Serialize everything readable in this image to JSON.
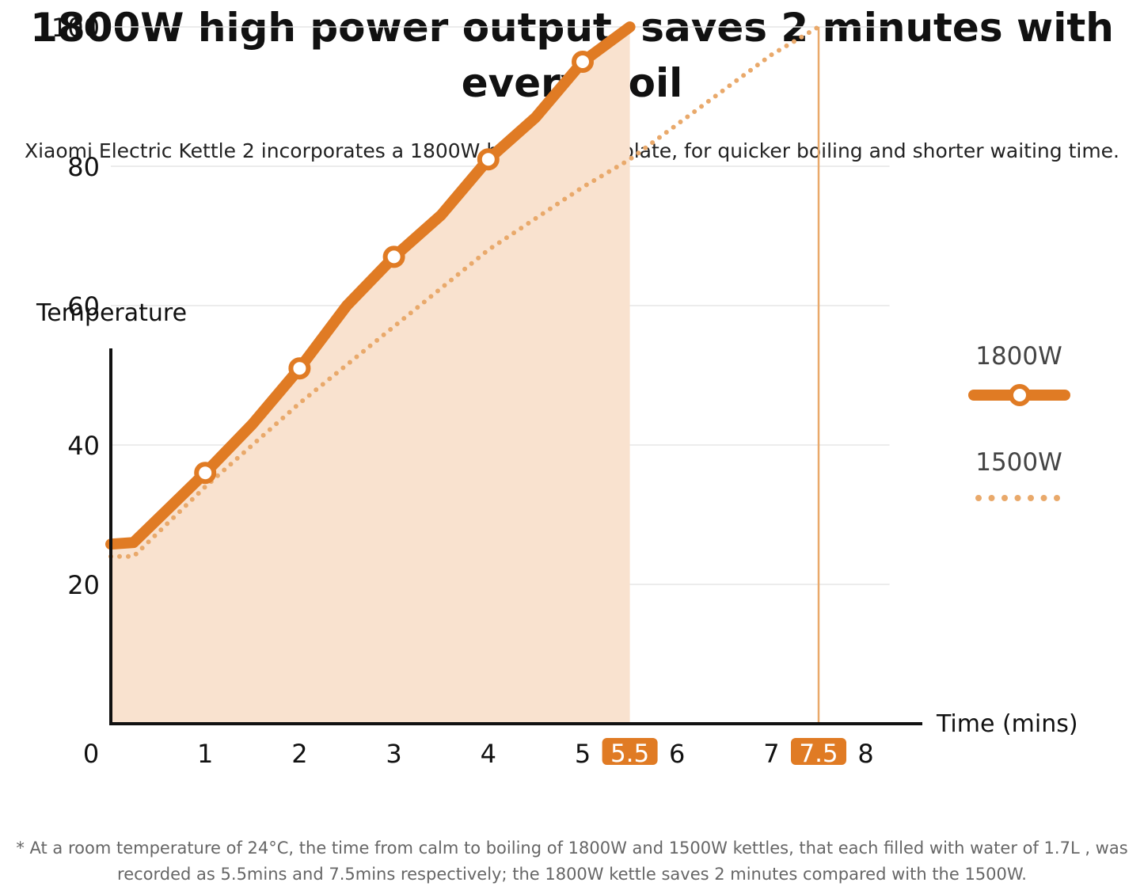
{
  "headline": "1800W high power output, saves 2 minutes with every boil",
  "subheadline": "Xiaomi Electric Kettle 2 incorporates a 1800W heating base plate, for quicker boiling and shorter waiting time.",
  "footnote": "* At a room temperature of 24°C, the time from calm to boiling of 1800W and 1500W kettles, that each filled with water of 1.7L , was recorded as 5.5mins and 7.5mins respectively; the 1800W kettle saves 2 minutes compared with the 1500W.",
  "colors": {
    "accent": "#E07B24",
    "fill": "#F9E2CF",
    "dotted": "#E9A96B",
    "grid": "#E6E6E6"
  },
  "chart_data": {
    "type": "line",
    "ylabel": "Temperature",
    "xlabel": "Time (mins)",
    "ylim": [
      0,
      100
    ],
    "xlim": [
      0,
      8
    ],
    "yticks": [
      "20",
      "40",
      "60",
      "80",
      "100"
    ],
    "xticks": [
      "0",
      "1",
      "2",
      "3",
      "4",
      "5",
      "6",
      "7",
      "8"
    ],
    "highlighted_x": [
      "5.5",
      "7.5"
    ],
    "grid": true,
    "legend_position": "right",
    "series": [
      {
        "name": "1800W",
        "style": "solid-with-markers",
        "x": [
          0.24,
          1,
          1.5,
          2,
          2.5,
          3,
          3.5,
          4,
          4.5,
          5,
          5.5
        ],
        "y": [
          26,
          36,
          43,
          51,
          60,
          67,
          73,
          81,
          87,
          95,
          100
        ],
        "marker_x": [
          1,
          2,
          3,
          4,
          5
        ],
        "marker_y": [
          36,
          51,
          67,
          81,
          95
        ]
      },
      {
        "name": "1500W",
        "style": "dotted",
        "x": [
          0.24,
          1,
          2,
          3,
          4,
          5,
          5.5,
          6,
          6.5,
          7,
          7.5
        ],
        "y": [
          24,
          34,
          46,
          57,
          68,
          77,
          81,
          86,
          91,
          96,
          100
        ]
      }
    ]
  }
}
